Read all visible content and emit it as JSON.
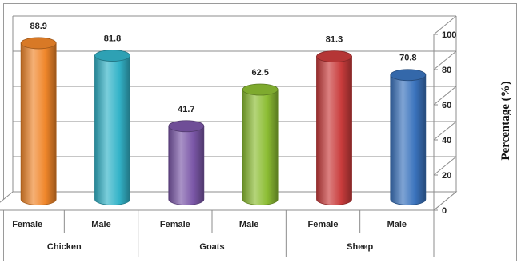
{
  "chart_data": {
    "type": "bar",
    "style": "3d-cylinder",
    "groups": [
      "Chicken",
      "Goats",
      "Sheep"
    ],
    "categories": [
      "Female",
      "Male",
      "Female",
      "Male",
      "Female",
      "Male"
    ],
    "group_of_category": [
      "Chicken",
      "Chicken",
      "Goats",
      "Goats",
      "Sheep",
      "Sheep"
    ],
    "values": [
      88.9,
      81.8,
      41.7,
      62.5,
      81.3,
      70.8
    ],
    "value_labels": [
      "88.9",
      "81.8",
      "41.7",
      "62.5",
      "81.3",
      "70.8"
    ],
    "colors": [
      "#f0862a",
      "#33b3c8",
      "#7b57a8",
      "#8cbd33",
      "#c93c3c",
      "#3a73bd"
    ],
    "ylabel": "Percentage (%)",
    "ylim": [
      0,
      100
    ],
    "yticks": [
      0,
      20,
      40,
      60,
      80,
      100
    ],
    "ytick_labels": [
      "0",
      "20",
      "40",
      "60",
      "80",
      "100"
    ],
    "y_axis_position": "right",
    "grid": true,
    "legend": "none"
  }
}
